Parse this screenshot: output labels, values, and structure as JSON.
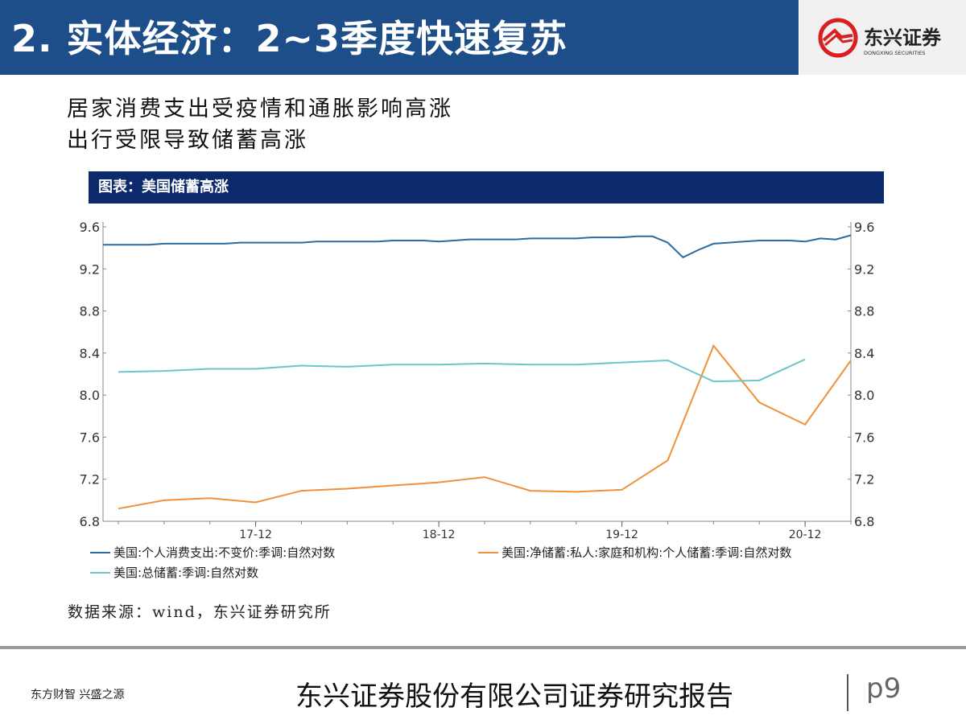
{
  "header": {
    "title": "2. 实体经济：2~3季度快速复苏",
    "logo_text": "东兴证券",
    "logo_subtext": "DONGXING SECURITIES"
  },
  "subtitle_lines": [
    "居家消费支出受疫情和通胀影响高涨",
    "出行受限导致储蓄高涨"
  ],
  "chart_title": "图表：美国储蓄高涨",
  "source": "数据来源：wind，东兴证券研究所",
  "footer": {
    "left": "东方财智 兴盛之源",
    "center": "东兴证券股份有限公司证券研究报告",
    "page": "p9"
  },
  "colors": {
    "header": "#1d4e89",
    "chart_title_bar": "#0c2a6b",
    "consumption": "#2a6a9e",
    "net_saving": "#f0913a",
    "total_saving": "#6cc5c9"
  },
  "chart_data": {
    "type": "line",
    "y_left": {
      "ticks": [
        "9.6",
        "9.2",
        "8.8",
        "8.4",
        "8.0",
        "7.6",
        "7.2",
        "6.8"
      ],
      "range": [
        6.8,
        9.6
      ]
    },
    "y_right": {
      "ticks": [
        "9.6",
        "9.2",
        "8.8",
        "8.4",
        "8.0",
        "7.6",
        "7.2",
        "6.8"
      ],
      "range": [
        6.8,
        9.6
      ]
    },
    "x_ticks": [
      {
        "label": "17-12",
        "date": "2017-12"
      },
      {
        "label": "18-12",
        "date": "2018-12"
      },
      {
        "label": "19-12",
        "date": "2019-12"
      },
      {
        "label": "20-12",
        "date": "2020-12"
      }
    ],
    "x_range": [
      "2017-02",
      "2021-03"
    ],
    "grid": false,
    "legend_position": "bottom",
    "series": [
      {
        "name": "美国:个人消费支出:不变价:季调:自然对数",
        "frequency": "monthly",
        "start": "2017-02",
        "values": [
          9.43,
          9.43,
          9.43,
          9.43,
          9.44,
          9.44,
          9.44,
          9.44,
          9.44,
          9.45,
          9.45,
          9.45,
          9.45,
          9.45,
          9.46,
          9.46,
          9.46,
          9.46,
          9.46,
          9.47,
          9.47,
          9.47,
          9.46,
          9.47,
          9.48,
          9.48,
          9.48,
          9.48,
          9.49,
          9.49,
          9.49,
          9.49,
          9.5,
          9.5,
          9.5,
          9.51,
          9.51,
          9.45,
          9.31,
          9.38,
          9.44,
          9.45,
          9.46,
          9.47,
          9.47,
          9.47,
          9.46,
          9.49,
          9.48,
          9.52
        ]
      },
      {
        "name": "美国:净储蓄:私人:家庭和机构:个人储蓄:季调:自然对数",
        "frequency": "quarterly",
        "start": "2017-03",
        "values": [
          6.92,
          7.0,
          7.02,
          6.98,
          7.09,
          7.11,
          7.14,
          7.17,
          7.22,
          7.09,
          7.08,
          7.1,
          7.38,
          8.47,
          7.93,
          7.72,
          8.33
        ]
      },
      {
        "name": "美国:总储蓄:季调:自然对数",
        "frequency": "quarterly",
        "start": "2017-03",
        "values": [
          8.22,
          8.23,
          8.25,
          8.25,
          8.28,
          8.27,
          8.29,
          8.29,
          8.3,
          8.29,
          8.29,
          8.31,
          8.33,
          8.13,
          8.14,
          8.34
        ]
      }
    ]
  }
}
